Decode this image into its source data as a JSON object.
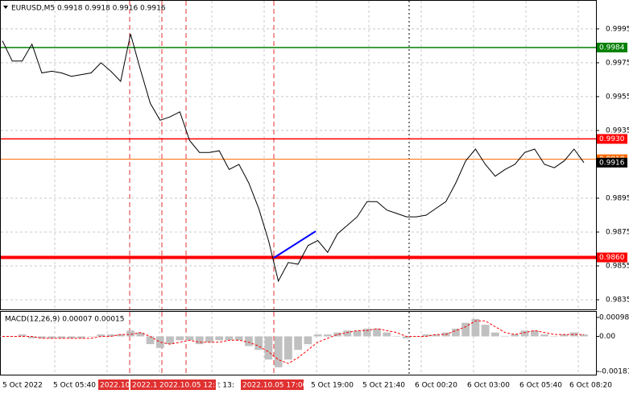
{
  "chart_data": [
    {
      "type": "line",
      "title": "EURUSD,M5 0.9918 0.9918 0.9916 0.9916",
      "color": "#000000",
      "values": [
        0.9988,
        0.9976,
        0.9976,
        0.9986,
        0.9969,
        0.997,
        0.9969,
        0.9967,
        0.9968,
        0.9969,
        0.9975,
        0.997,
        0.9964,
        0.9992,
        0.9971,
        0.9951,
        0.9941,
        0.9943,
        0.9946,
        0.9929,
        0.9922,
        0.9922,
        0.9923,
        0.9912,
        0.9915,
        0.9904,
        0.9889,
        0.987,
        0.9846,
        0.9857,
        0.9856,
        0.9867,
        0.987,
        0.9863,
        0.9874,
        0.9879,
        0.9884,
        0.9893,
        0.9893,
        0.9888,
        0.9886,
        0.9884,
        0.9884,
        0.9885,
        0.9889,
        0.9893,
        0.9904,
        0.9917,
        0.9924,
        0.9915,
        0.9908,
        0.9912,
        0.9915,
        0.9922,
        0.9924,
        0.9915,
        0.9913,
        0.9917,
        0.9924,
        0.9916
      ],
      "ylim": [
        0.98293,
        1.00116
      ],
      "yticks": [
        0.9995,
        0.9975,
        0.9955,
        0.9935,
        0.9895,
        0.9875,
        0.9855,
        0.9835
      ],
      "grid": true,
      "levels": [
        {
          "value": 0.9984,
          "color": "#008000"
        },
        {
          "value": 0.993,
          "label": "0.9930",
          "color": "#ff0000"
        },
        {
          "value": 0.9918,
          "color": "#ff6a00"
        },
        {
          "value": 0.986,
          "label": "0.9860",
          "color": "#ff0000"
        },
        {
          "value": 0.9916,
          "color": "#000000"
        }
      ],
      "x_labels": [
        "5 Oct 2022",
        "5 Oct 05:40",
        "t 13:",
        "5 Oct 19:00",
        "5 Oct 21:40",
        "6 Oct 00:20",
        "6 Oct 03:00",
        "6 Oct 05:40",
        "6 Oct 08:20"
      ],
      "markers": [
        "2022.10.",
        "2022.1",
        "2022.10.05 12:30",
        "2022.10.05 17:00"
      ]
    },
    {
      "type": "macd",
      "title": "MACD(12,26,9) 0.00007 0.00015",
      "series": [
        {
          "color": "#c0c0c0",
          "values": [
            0,
            0,
            0.0001,
            -0.0001,
            -0.0001,
            -0.0001,
            -0.0001,
            -0.0001,
            -0.0001,
            0,
            0.0001,
            0.0001,
            0.0001,
            0.0003,
            0.0002,
            -0.0004,
            -0.0006,
            -0.0004,
            -0.0002,
            -0.0002,
            -0.0004,
            -0.0003,
            -0.0002,
            -0.0002,
            -0.0002,
            -0.0005,
            -0.0007,
            -0.0012,
            -0.0016,
            -0.0012,
            -0.0007,
            -0.0004,
            0.0001,
            0.0001,
            0.0002,
            0.0003,
            0.0003,
            0.0004,
            0.0004,
            0.0002,
            0,
            -0.0001,
            0,
            0.0001,
            0.0001,
            0.0002,
            0.0004,
            0.0007,
            0.0009,
            0.0006,
            0.0002,
            0,
            0.0001,
            0.0003,
            0.0003,
            0.0001,
            0,
            0.0001,
            0.0002,
            0.0001
          ]
        },
        {
          "color": "#ff0000",
          "values": [
            0,
            0,
            0,
            0,
            -0.0001,
            -0.0001,
            -0.0001,
            -0.0001,
            -0.0001,
            -0.0001,
            0,
            0,
            0.0001,
            0.0001,
            0.0002,
            0,
            -0.0003,
            -0.0004,
            -0.0003,
            -0.0002,
            -0.0003,
            -0.0003,
            -0.0003,
            -0.0002,
            -0.0002,
            -0.0003,
            -0.0005,
            -0.0008,
            -0.0012,
            -0.0014,
            -0.0011,
            -0.0007,
            -0.0003,
            -0.0001,
            0.0001,
            0.0002,
            0.0003,
            0.0003,
            0.0004,
            0.0003,
            0.0002,
            0,
            0,
            0,
            0.0001,
            0.0001,
            0.0003,
            0.0005,
            0.0008,
            0.0008,
            0.0005,
            0.0002,
            0.0001,
            0.0002,
            0.0003,
            0.0002,
            0.0001,
            0.0001,
            0.0001,
            0.0001
          ]
        }
      ],
      "ylim": [
        -0.00198,
        0.00127
      ],
      "yticks": [
        0.00098,
        {
          "value": 0,
          "label": "0.00"
        },
        -0.00181
      ]
    }
  ]
}
